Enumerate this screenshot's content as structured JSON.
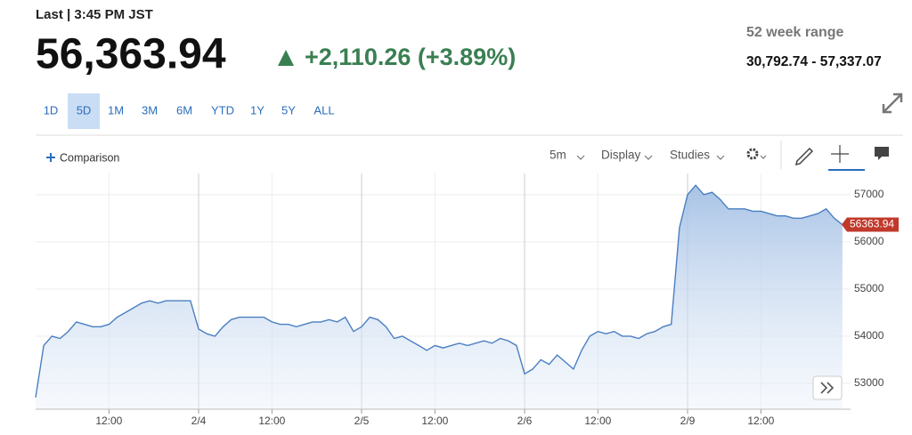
{
  "header": {
    "last": "Last | 3:45 PM JST",
    "price": "56,363.94",
    "change": "+2,110.26 (+3.89%)",
    "range_label": "52 week range",
    "range_value": "30,792.74 - 57,337.07"
  },
  "tabs": [
    "1D",
    "5D",
    "1M",
    "3M",
    "6M",
    "YTD",
    "1Y",
    "5Y",
    "ALL"
  ],
  "active_tab": "5D",
  "toolbar": {
    "comparison": "Comparison",
    "interval": "5m",
    "display": "Display",
    "studies": "Studies"
  },
  "chart_data": {
    "type": "area",
    "color": "#4a7fc1",
    "categories": [
      null,
      null,
      null,
      null,
      null,
      null,
      null,
      null,
      null,
      "12:00",
      null,
      null,
      null,
      null,
      null,
      null,
      null,
      null,
      null,
      null,
      "2/4",
      null,
      null,
      null,
      null,
      null,
      null,
      null,
      null,
      "12:00",
      null,
      null,
      null,
      null,
      null,
      null,
      null,
      null,
      null,
      null,
      "2/5",
      null,
      null,
      null,
      null,
      null,
      null,
      null,
      null,
      "12:00",
      null,
      null,
      null,
      null,
      null,
      null,
      null,
      null,
      null,
      null,
      "2/6",
      null,
      null,
      null,
      null,
      null,
      null,
      null,
      null,
      "12:00",
      null,
      null,
      null,
      null,
      null,
      null,
      null,
      null,
      null,
      null,
      "2/9",
      null,
      null,
      null,
      null,
      null,
      null,
      null,
      null,
      "12:00",
      null,
      null,
      null,
      null,
      null,
      null,
      null,
      null,
      null,
      null
    ],
    "values": [
      52700,
      53800,
      54000,
      53950,
      54100,
      54300,
      54250,
      54200,
      54200,
      54250,
      54400,
      54500,
      54600,
      54700,
      54750,
      54700,
      54750,
      54750,
      54750,
      54750,
      54150,
      54050,
      54000,
      54200,
      54350,
      54400,
      54400,
      54400,
      54400,
      54300,
      54250,
      54250,
      54200,
      54250,
      54300,
      54300,
      54350,
      54300,
      54400,
      54100,
      54200,
      54400,
      54350,
      54200,
      53950,
      54000,
      53900,
      53800,
      53700,
      53800,
      53750,
      53800,
      53850,
      53800,
      53850,
      53900,
      53850,
      53950,
      53900,
      53800,
      53200,
      53300,
      53500,
      53400,
      53600,
      53450,
      53300,
      53700,
      54000,
      54100,
      54050,
      54100,
      54000,
      54000,
      53950,
      54050,
      54100,
      54200,
      54250,
      56300,
      57000,
      57200,
      57000,
      57050,
      56900,
      56700,
      56700,
      56700,
      56650,
      56650,
      56600,
      56550,
      56550,
      56500,
      56500,
      56550,
      56600,
      56700,
      56500,
      56363.94
    ],
    "last_price_label": "56363.94",
    "ylim": [
      52450,
      57450
    ],
    "yticks": [
      53000,
      54000,
      55000,
      56000,
      57000
    ],
    "grid": true
  }
}
